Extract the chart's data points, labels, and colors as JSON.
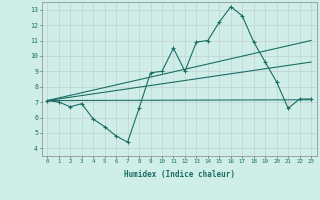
{
  "title": "",
  "xlabel": "Humidex (Indice chaleur)",
  "xlim": [
    -0.5,
    23.5
  ],
  "ylim": [
    3.5,
    13.5
  ],
  "xticks": [
    0,
    1,
    2,
    3,
    4,
    5,
    6,
    7,
    8,
    9,
    10,
    11,
    12,
    13,
    14,
    15,
    16,
    17,
    18,
    19,
    20,
    21,
    22,
    23
  ],
  "yticks": [
    4,
    5,
    6,
    7,
    8,
    9,
    10,
    11,
    12,
    13
  ],
  "bg_color": "#d0eee8",
  "line_color": "#1a6e64",
  "grid_color": "#c0c8cc",
  "series1_x": [
    0,
    1,
    2,
    3,
    4,
    5,
    6,
    7,
    8,
    9,
    10,
    11,
    12,
    13,
    14,
    15,
    16,
    17,
    18,
    19,
    20,
    21,
    22,
    23
  ],
  "series1_y": [
    7.1,
    7.0,
    6.7,
    6.9,
    5.9,
    5.4,
    4.8,
    4.4,
    6.6,
    8.9,
    9.0,
    10.5,
    9.0,
    10.9,
    11.0,
    12.2,
    13.2,
    12.6,
    10.9,
    9.6,
    8.3,
    6.6,
    7.2,
    7.2
  ],
  "series2_x": [
    0,
    23
  ],
  "series2_y": [
    7.1,
    7.15
  ],
  "series3_x": [
    0,
    23
  ],
  "series3_y": [
    7.1,
    11.0
  ],
  "series4_x": [
    0,
    23
  ],
  "series4_y": [
    7.1,
    9.6
  ],
  "figsize": [
    3.2,
    2.0
  ],
  "dpi": 100
}
